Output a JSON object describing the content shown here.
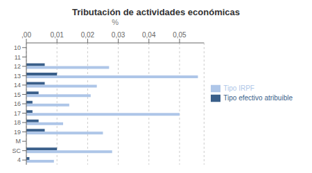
{
  "chart_data": {
    "type": "bar",
    "orientation": "horizontal",
    "title": "Tributación de actividades económicas",
    "xlabel": "%",
    "categories": [
      "10",
      "11",
      "12",
      "13",
      "14",
      "15",
      "16",
      "17",
      "18",
      "19",
      "M",
      "SC",
      "4"
    ],
    "series": [
      {
        "name": "Tipo efectivo atribuible",
        "color": "#3a5f8a",
        "values": [
          0.0,
          0.0,
          0.006,
          0.01,
          0.006,
          0.004,
          0.002,
          0.002,
          0.004,
          0.006,
          0.0,
          0.01,
          0.001
        ]
      },
      {
        "name": "Tipo IRPF",
        "color": "#aec6e8",
        "values": [
          0.0,
          0.0,
          0.027,
          0.056,
          0.023,
          0.021,
          0.014,
          0.05,
          0.012,
          0.025,
          0.0,
          0.028,
          0.009
        ]
      }
    ],
    "xlim": [
      0.0,
      0.058
    ],
    "xticks": [
      {
        "value": 0.0,
        "label": ",00"
      },
      {
        "value": 0.01,
        "label": "0,01"
      },
      {
        "value": 0.02,
        "label": "0,02"
      },
      {
        "value": 0.03,
        "label": "0,03"
      },
      {
        "value": 0.04,
        "label": "0,04"
      },
      {
        "value": 0.05,
        "label": "0,05"
      }
    ],
    "grid": true,
    "legend": "right"
  }
}
